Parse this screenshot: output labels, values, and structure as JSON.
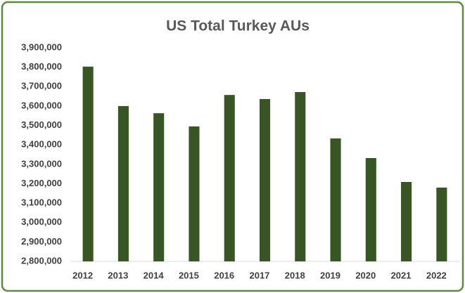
{
  "chart_data": {
    "type": "bar",
    "title": "US Total Turkey AUs",
    "categories": [
      "2012",
      "2013",
      "2014",
      "2015",
      "2016",
      "2017",
      "2018",
      "2019",
      "2020",
      "2021",
      "2022"
    ],
    "values": [
      3803000,
      3600000,
      3563000,
      3495000,
      3657000,
      3636000,
      3672000,
      3433000,
      3332000,
      3209000,
      3180000
    ],
    "color": "#375623",
    "ylim": [
      2800000,
      3900000
    ],
    "yticks": [
      {
        "value": 2800000,
        "label": "2,800,000"
      },
      {
        "value": 2900000,
        "label": "2,900,000"
      },
      {
        "value": 3000000,
        "label": "3,000,000"
      },
      {
        "value": 3100000,
        "label": "3,100,000"
      },
      {
        "value": 3200000,
        "label": "3,200,000"
      },
      {
        "value": 3300000,
        "label": "3,300,000"
      },
      {
        "value": 3400000,
        "label": "3,400,000"
      },
      {
        "value": 3500000,
        "label": "3,500,000"
      },
      {
        "value": 3600000,
        "label": "3,600,000"
      },
      {
        "value": 3700000,
        "label": "3,700,000"
      },
      {
        "value": 3800000,
        "label": "3,800,000"
      },
      {
        "value": 3900000,
        "label": "3,900,000"
      }
    ],
    "grid": false
  }
}
